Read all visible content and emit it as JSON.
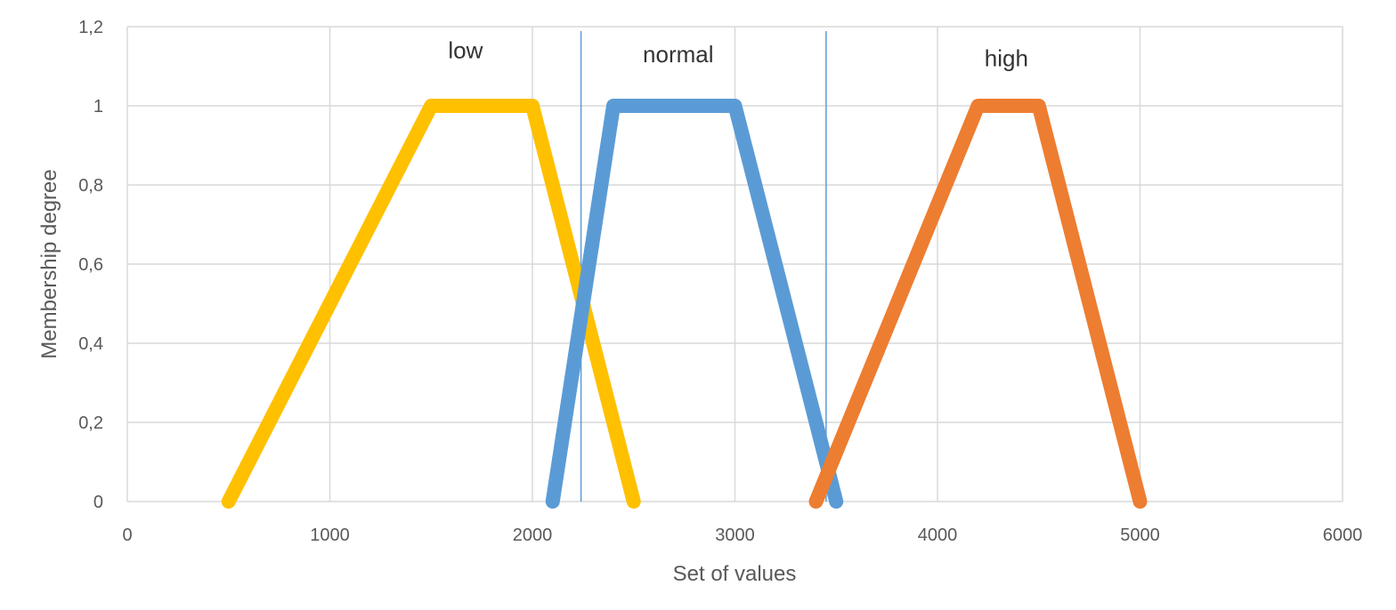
{
  "chart_data": {
    "type": "line",
    "xlabel": "Set of values",
    "ylabel": "Membership degree",
    "xlim": [
      0,
      6000
    ],
    "ylim": [
      0,
      1.2
    ],
    "x_ticks": [
      0,
      1000,
      2000,
      3000,
      4000,
      5000,
      6000
    ],
    "x_tick_labels": [
      "0",
      "1000",
      "2000",
      "3000",
      "4000",
      "5000",
      "6000"
    ],
    "y_ticks": [
      0,
      0.2,
      0.4,
      0.6,
      0.8,
      1,
      1.2
    ],
    "y_tick_labels": [
      "0",
      "0,2",
      "0,4",
      "0,6",
      "0,8",
      "1",
      "1,2"
    ],
    "grid": true,
    "legend": "none",
    "series": [
      {
        "name": "low",
        "color": "#FFC000",
        "x": [
          500,
          1500,
          2000,
          2500
        ],
        "y": [
          0,
          1,
          1,
          0
        ],
        "label_x": 1670,
        "label_y": 1.12
      },
      {
        "name": "normal",
        "color": "#5B9BD5",
        "x": [
          2100,
          2400,
          3000,
          3500
        ],
        "y": [
          0,
          1,
          1,
          0
        ],
        "label_x": 2720,
        "label_y": 1.11
      },
      {
        "name": "high",
        "color": "#ED7D31",
        "x": [
          3400,
          4200,
          4500,
          5000
        ],
        "y": [
          0,
          1,
          1,
          0
        ],
        "label_x": 3380,
        "label_y": 1.1
      }
    ],
    "vertical_markers": [
      {
        "x": 2240,
        "color": "#5B9BD5"
      },
      {
        "x": 3450,
        "color": "#5B9BD5"
      }
    ]
  }
}
